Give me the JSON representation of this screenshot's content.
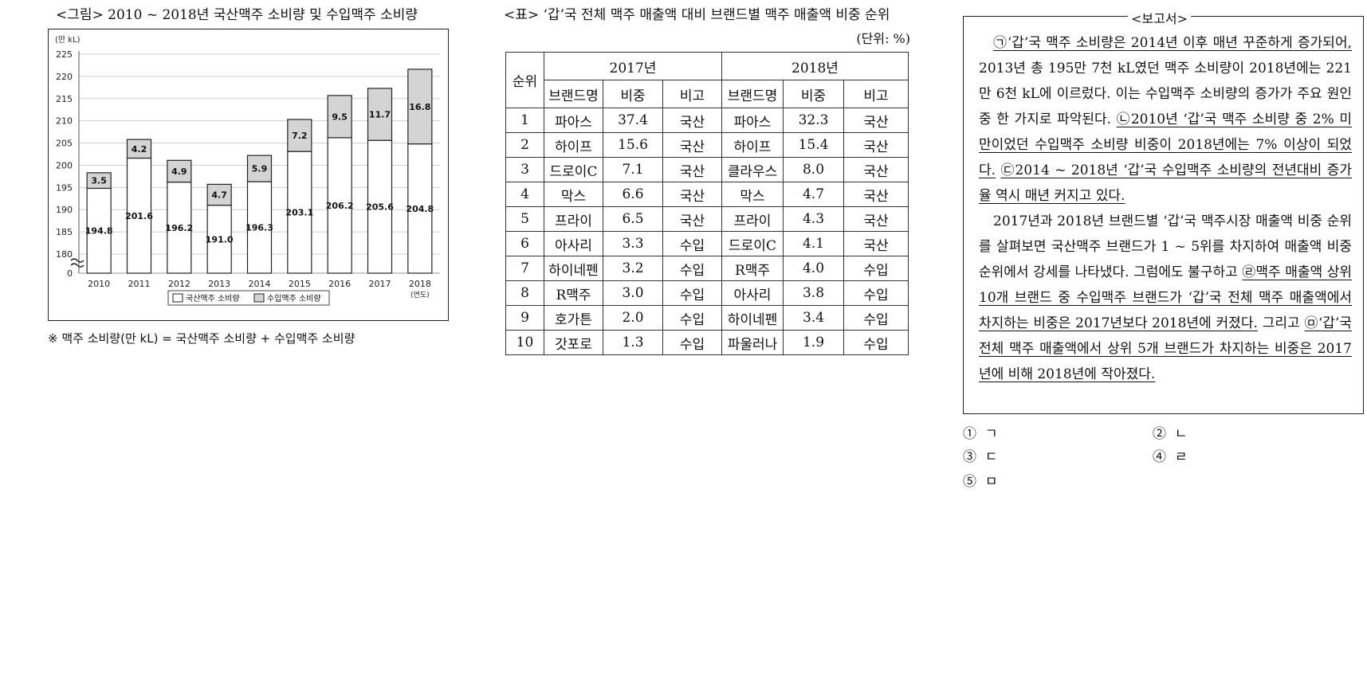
{
  "figure": {
    "title": "<그림> 2010 ~ 2018년 국산맥주 소비량 및 수입맥주 소비량",
    "note": "※  맥주 소비량(만 kL) = 국산맥주 소비량 + 수입맥주 소비량"
  },
  "chart_data": {
    "type": "bar",
    "stacked": true,
    "categories": [
      "2010",
      "2011",
      "2012",
      "2013",
      "2014",
      "2015",
      "2016",
      "2017",
      "2018"
    ],
    "series": [
      {
        "name": "국산맥주 소비량",
        "values": [
          194.8,
          201.6,
          196.2,
          191.0,
          196.3,
          203.1,
          206.2,
          205.6,
          204.8
        ],
        "color": "#ffffff"
      },
      {
        "name": "수입맥주 소비량",
        "values": [
          3.5,
          4.2,
          4.9,
          4.7,
          5.9,
          7.2,
          9.5,
          11.7,
          16.8
        ],
        "color": "#d4d4d4"
      }
    ],
    "ylabel": "(만 kL)",
    "xlabel": "(연도)",
    "yticks": [
      "0",
      "180",
      "185",
      "190",
      "195",
      "200",
      "205",
      "210",
      "215",
      "220",
      "225"
    ],
    "ylim": [
      177,
      225
    ],
    "axis_break": true,
    "grid": true,
    "legend": "bottom-center",
    "domestic_labels": [
      "194.8",
      "201.6",
      "196.2",
      "191.0",
      "196.3",
      "203.1",
      "206.2",
      "205.6",
      "204.8"
    ],
    "import_labels": [
      "3.5",
      "4.2",
      "4.9",
      "4.7",
      "5.9",
      "7.2",
      "9.5",
      "11.7",
      "16.8"
    ]
  },
  "table": {
    "title": "<표> ‘갑’국 전체 맥주 매출액 대비 브랜드별 맥주 매출액 비중 순위",
    "unit": "(단위: %)",
    "rank_header": "순위",
    "year1": "2017년",
    "year2": "2018년",
    "col_brand": "브랜드명",
    "col_share": "비중",
    "col_note": "비고",
    "rows": [
      {
        "rank": "1",
        "b17": "파아스",
        "s17": "37.4",
        "n17": "국산",
        "b18": "파아스",
        "s18": "32.3",
        "n18": "국산"
      },
      {
        "rank": "2",
        "b17": "하이프",
        "s17": "15.6",
        "n17": "국산",
        "b18": "하이프",
        "s18": "15.4",
        "n18": "국산"
      },
      {
        "rank": "3",
        "b17": "드로이C",
        "s17": "7.1",
        "n17": "국산",
        "b18": "클라우스",
        "s18": "8.0",
        "n18": "국산"
      },
      {
        "rank": "4",
        "b17": "막스",
        "s17": "6.6",
        "n17": "국산",
        "b18": "막스",
        "s18": "4.7",
        "n18": "국산"
      },
      {
        "rank": "5",
        "b17": "프라이",
        "s17": "6.5",
        "n17": "국산",
        "b18": "프라이",
        "s18": "4.3",
        "n18": "국산"
      },
      {
        "rank": "6",
        "b17": "아사리",
        "s17": "3.3",
        "n17": "수입",
        "b18": "드로이C",
        "s18": "4.1",
        "n18": "국산"
      },
      {
        "rank": "7",
        "b17": "하이네펜",
        "s17": "3.2",
        "n17": "수입",
        "b18": "R맥주",
        "s18": "4.0",
        "n18": "수입"
      },
      {
        "rank": "8",
        "b17": "R맥주",
        "s17": "3.0",
        "n17": "수입",
        "b18": "아사리",
        "s18": "3.8",
        "n18": "수입"
      },
      {
        "rank": "9",
        "b17": "호가튼",
        "s17": "2.0",
        "n17": "수입",
        "b18": "하이네펜",
        "s18": "3.4",
        "n18": "수입"
      },
      {
        "rank": "10",
        "b17": "갓포로",
        "s17": "1.3",
        "n17": "수입",
        "b18": "파울러나",
        "s18": "1.9",
        "n18": "수입"
      }
    ]
  },
  "report": {
    "label": "<보고서>",
    "p1_a": "㉠‘갑’국 맥주 소비량은 2014년 이후 매년 꾸준하게 증가되어,",
    "p1_b": " 2013년 총 195만 7천 kL였던 맥주 소비량이 2018년에는 221만 6천 kL에 이르렀다. 이는 수입맥주 소비량의 증가가 주요 원인 중 한 가지로 파악된다. ",
    "p1_c": "㉡2010년 ‘갑’국 맥주 소비량 중 2% 미만이었던 수입맥주 소비량 비중이 2018년에는 7% 이상이 되었다.",
    "p1_d": " ",
    "p1_e": "㉢2014 ~ 2018년 ‘갑’국 수입맥주 소비량의 전년대비 증가율 역시 매년 커지고 있다.",
    "p2_a": "2017년과 2018년 브랜드별 ‘갑’국 맥주시장 매출액 비중 순위를 살펴보면 국산맥주 브랜드가 1 ~ 5위를 차지하여 매출액 비중 순위에서 강세를 나타냈다. 그럼에도 불구하고 ",
    "p2_b": "㉣맥주 매출액 상위 10개 브랜드 중 수입맥주 브랜드가 ‘갑’국 전체 맥주 매출액에서 차지하는 비중은 2017년보다 2018년에 커졌다.",
    "p2_c": " 그리고 ",
    "p2_d": "㉤‘갑’국 전체 맥주 매출액에서 상위 5개 브랜드가 차지하는 비중은 2017년에 비해 2018년에 작아졌다."
  },
  "options": [
    {
      "num": "①",
      "label": "ㄱ"
    },
    {
      "num": "②",
      "label": "ㄴ"
    },
    {
      "num": "③",
      "label": "ㄷ"
    },
    {
      "num": "④",
      "label": "ㄹ"
    },
    {
      "num": "⑤",
      "label": "ㅁ"
    }
  ]
}
